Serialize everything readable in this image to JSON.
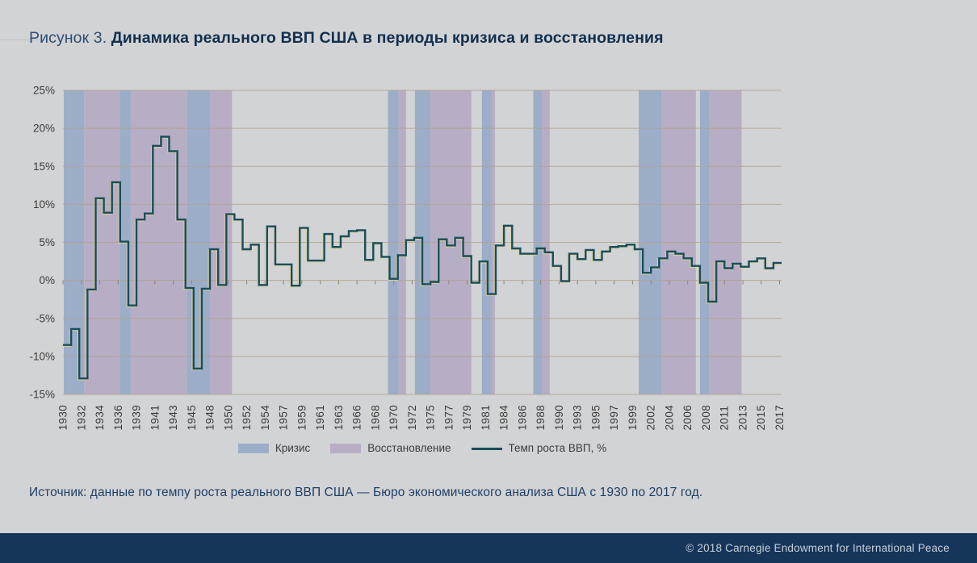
{
  "page": {
    "title_prefix": "Рисунок 3. ",
    "title": "Динамика реального ВВП США в периоды кризиса и восстановления",
    "source_label": "Источник:",
    "source_text": " данные по темпу роста реального ВВП США — Бюро экономического анализа США с 1930 по 2017 год.",
    "footer_copyright": "© 2018 Carnegie Endowment for International Peace"
  },
  "legend": {
    "crisis_label": "Кризис",
    "recovery_label": "Восстановление",
    "line_label": "Темп роста ВВП, %"
  },
  "colors": {
    "page_bg": "#d2d3d5",
    "crisis_band": "#9cadc8",
    "recovery_band": "#b7adc4",
    "gridline": "#b1a58e",
    "zero_tick": "#8e8573",
    "line": "#1a4e59",
    "line_glow": "#d8d0a0",
    "axis_text": "#3c3b39",
    "title_navy": "#12304f",
    "source_navy": "#1f3f66",
    "footer_bg": "#16355b",
    "footer_text": "#c7cfd8"
  },
  "chart_data": {
    "type": "line",
    "step": true,
    "title": "",
    "xlabel": "",
    "ylabel": "",
    "ylim": [
      -15,
      25
    ],
    "ytick_step": 5,
    "ytick_labels": [
      "25%",
      "20%",
      "15%",
      "10%",
      "5%",
      "0%",
      "-5%",
      "-10%",
      "-15%"
    ],
    "x_start_year": 1930,
    "x_end_year": 2017,
    "xtick_first_year": 1930,
    "xtick_interval_years": 2.25,
    "xtick_labels": [
      "1930",
      "1932",
      "1934",
      "1936",
      "1939",
      "1941",
      "1943",
      "1945",
      "1948",
      "1950",
      "1952",
      "1954",
      "1957",
      "1959",
      "1961",
      "1963",
      "1966",
      "1968",
      "1970",
      "1972",
      "1975",
      "1977",
      "1979",
      "1981",
      "1984",
      "1986",
      "1988",
      "1990",
      "1993",
      "1995",
      "1997",
      "1999",
      "2002",
      "2004",
      "2006",
      "2008",
      "2011",
      "2013",
      "2015",
      "2017"
    ],
    "legend_position": "bottom",
    "grid": true,
    "series": [
      {
        "name": "Темп роста ВВП, %",
        "values": [
          -8.5,
          -6.4,
          -12.9,
          -1.2,
          10.8,
          8.9,
          12.9,
          5.1,
          -3.3,
          8.0,
          8.8,
          17.7,
          18.9,
          17.0,
          8.0,
          -1.0,
          -11.6,
          -1.1,
          4.1,
          -0.6,
          8.7,
          8.0,
          4.1,
          4.7,
          -0.6,
          7.1,
          2.1,
          2.1,
          -0.7,
          6.9,
          2.6,
          2.6,
          6.1,
          4.4,
          5.8,
          6.5,
          6.6,
          2.7,
          4.9,
          3.1,
          0.2,
          3.3,
          5.3,
          5.6,
          -0.5,
          -0.2,
          5.4,
          4.6,
          5.6,
          3.2,
          -0.3,
          2.5,
          -1.8,
          4.6,
          7.2,
          4.2,
          3.5,
          3.5,
          4.2,
          3.7,
          1.9,
          -0.1,
          3.5,
          2.8,
          4.0,
          2.7,
          3.8,
          4.4,
          4.5,
          4.7,
          4.1,
          1.0,
          1.7,
          2.9,
          3.8,
          3.5,
          2.9,
          1.9,
          -0.3,
          -2.8,
          2.5,
          1.6,
          2.2,
          1.8,
          2.5,
          2.9,
          1.6,
          2.3
        ]
      }
    ],
    "bands": [
      {
        "type": "crisis",
        "from": 1930.1,
        "to": 1932.6
      },
      {
        "type": "recovery",
        "from": 1932.6,
        "to": 1937.0
      },
      {
        "type": "crisis",
        "from": 1937.0,
        "to": 1938.3
      },
      {
        "type": "recovery",
        "from": 1938.3,
        "to": 1945.2
      },
      {
        "type": "crisis",
        "from": 1945.2,
        "to": 1948.0
      },
      {
        "type": "recovery",
        "from": 1948.0,
        "to": 1950.7
      },
      {
        "type": "crisis",
        "from": 1969.8,
        "to": 1971.1
      },
      {
        "type": "recovery",
        "from": 1971.1,
        "to": 1972.0
      },
      {
        "type": "crisis",
        "from": 1973.1,
        "to": 1975.0
      },
      {
        "type": "recovery",
        "from": 1975.0,
        "to": 1980.0
      },
      {
        "type": "crisis",
        "from": 1981.3,
        "to": 1982.5
      },
      {
        "type": "recovery",
        "from": 1982.5,
        "to": 1982.9
      },
      {
        "type": "crisis",
        "from": 1987.6,
        "to": 1988.7
      },
      {
        "type": "recovery",
        "from": 1988.7,
        "to": 1989.6
      },
      {
        "type": "crisis",
        "from": 2000.5,
        "to": 2003.3
      },
      {
        "type": "recovery",
        "from": 2003.3,
        "to": 2007.5
      },
      {
        "type": "crisis",
        "from": 2008.0,
        "to": 2009.1
      },
      {
        "type": "recovery",
        "from": 2009.1,
        "to": 2013.1
      }
    ],
    "band_type_labels": {
      "crisis": "Кризис",
      "recovery": "Восстановление"
    }
  }
}
